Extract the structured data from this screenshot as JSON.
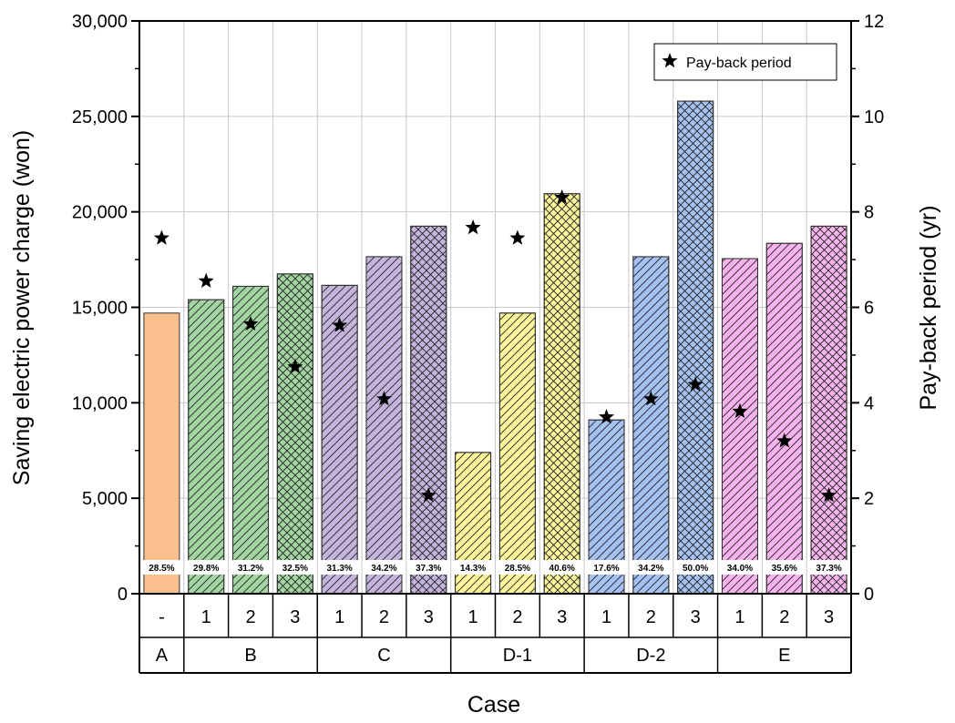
{
  "chart_data": {
    "type": "bar",
    "xlabel": "Case",
    "ylabel": "Saving electric power charge (won)",
    "y2label": "Pay-back period (yr)",
    "ylim": [
      0,
      30000
    ],
    "y2lim": [
      0,
      12
    ],
    "y_ticks": [
      "0",
      "5,000",
      "10,000",
      "15,000",
      "20,000",
      "25,000",
      "30,000"
    ],
    "y2_ticks": [
      "0",
      "2",
      "4",
      "6",
      "8",
      "10",
      "12"
    ],
    "grid": true,
    "legend": {
      "position": "top-right",
      "label": "Pay-back period"
    },
    "groups": [
      {
        "name": "A",
        "color": "#f9c08e",
        "pattern": "solid",
        "bars": [
          {
            "sub": "-",
            "value": 14700,
            "label": "28.5%",
            "payback": 7.45
          }
        ]
      },
      {
        "name": "B",
        "color": "#a3d5a3",
        "pattern": "diag",
        "bars": [
          {
            "sub": "1",
            "value": 15400,
            "label": "29.8%",
            "payback": 6.55
          },
          {
            "sub": "2",
            "value": 16100,
            "label": "31.2%",
            "payback": 5.65
          },
          {
            "sub": "3",
            "value": 16750,
            "label": "32.5%",
            "payback": 4.75
          }
        ]
      },
      {
        "name": "C",
        "color": "#c4b4dc",
        "pattern": "diag",
        "bars": [
          {
            "sub": "1",
            "value": 16150,
            "label": "31.3%",
            "payback": 5.62
          },
          {
            "sub": "2",
            "value": 17650,
            "label": "34.2%",
            "payback": 4.08
          },
          {
            "sub": "3",
            "value": 19250,
            "label": "37.3%",
            "payback": 2.06
          }
        ]
      },
      {
        "name": "D-1",
        "color": "#fdf59a",
        "pattern": "diag",
        "bars": [
          {
            "sub": "1",
            "value": 7400,
            "label": "14.3%",
            "payback": 7.67
          },
          {
            "sub": "2",
            "value": 14700,
            "label": "28.5%",
            "payback": 7.45
          },
          {
            "sub": "3",
            "value": 20950,
            "label": "40.6%",
            "payback": 8.3
          }
        ]
      },
      {
        "name": "D-2",
        "color": "#a6c2f2",
        "pattern": "diag",
        "bars": [
          {
            "sub": "1",
            "value": 9100,
            "label": "17.6%",
            "payback": 3.7
          },
          {
            "sub": "2",
            "value": 17650,
            "label": "34.2%",
            "payback": 4.08
          },
          {
            "sub": "3",
            "value": 25800,
            "label": "50.0%",
            "payback": 4.38
          }
        ]
      },
      {
        "name": "E",
        "color": "#f9b4ef",
        "pattern": "diag",
        "bars": [
          {
            "sub": "1",
            "value": 17550,
            "label": "34.0%",
            "payback": 3.82
          },
          {
            "sub": "2",
            "value": 18350,
            "label": "35.6%",
            "payback": 3.2
          },
          {
            "sub": "3",
            "value": 19250,
            "label": "37.3%",
            "payback": 2.06
          }
        ]
      }
    ]
  }
}
